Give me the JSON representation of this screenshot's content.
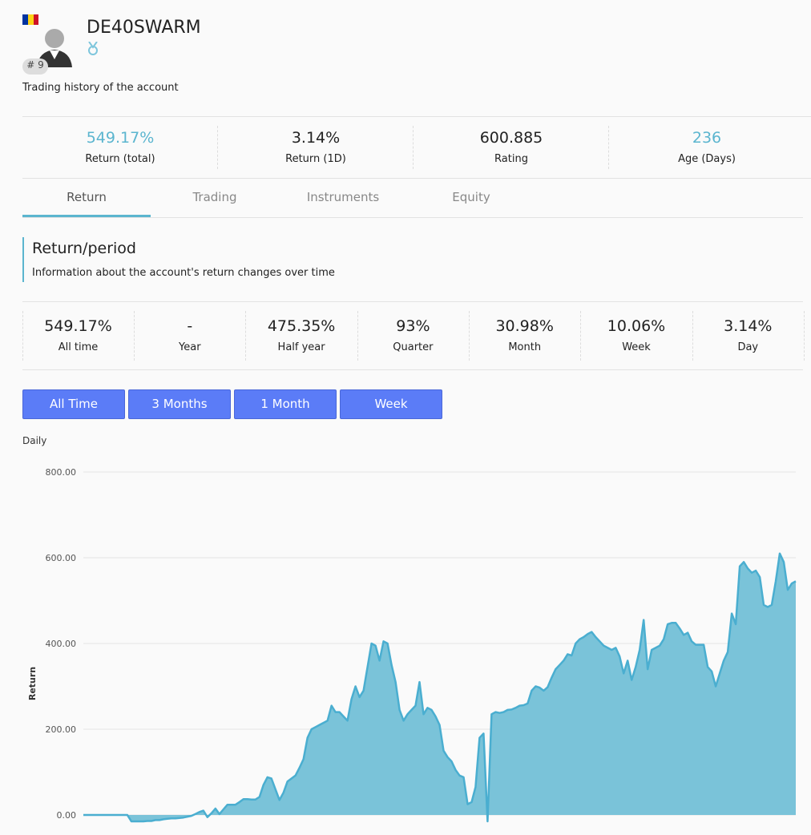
{
  "header": {
    "rank": "# 9",
    "name": "DE40SWARM",
    "subtitle": "Trading history of the account"
  },
  "stats": [
    {
      "value": "549.17%",
      "label": "Return (total)",
      "highlight": true
    },
    {
      "value": "3.14%",
      "label": "Return (1D)",
      "highlight": false
    },
    {
      "value": "600.885",
      "label": "Rating",
      "highlight": false
    },
    {
      "value": "236",
      "label": "Age (Days)",
      "highlight": true
    }
  ],
  "tabs": [
    "Return",
    "Trading",
    "Instruments",
    "Equity"
  ],
  "active_tab": 0,
  "section": {
    "title": "Return/period",
    "description": "Information about the account's return changes over time"
  },
  "periods": [
    {
      "value": "549.17%",
      "label": "All time"
    },
    {
      "value": "-",
      "label": "Year"
    },
    {
      "value": "475.35%",
      "label": "Half year"
    },
    {
      "value": "93%",
      "label": "Quarter"
    },
    {
      "value": "30.98%",
      "label": "Month"
    },
    {
      "value": "10.06%",
      "label": "Week"
    },
    {
      "value": "3.14%",
      "label": "Day"
    }
  ],
  "buttons": [
    "All Time",
    "3 Months",
    "1 Month",
    "Week"
  ],
  "chart_data": {
    "type": "area",
    "title": "Daily",
    "y_label": "Return",
    "color": "#7ac3d9",
    "line_color": "#4aaed0",
    "grid": true,
    "ylim": [
      -25,
      800
    ],
    "yticks": [
      {
        "value": 0,
        "label": "0.00"
      },
      {
        "value": 200,
        "label": "200.00"
      },
      {
        "value": 400,
        "label": "400.00"
      },
      {
        "value": 600,
        "label": "600.00"
      },
      {
        "value": 800,
        "label": "800.00"
      }
    ],
    "values": [
      0,
      0,
      0,
      0,
      0,
      0,
      0,
      0,
      0,
      0,
      0,
      0,
      -15,
      -15,
      -15,
      -15,
      -14,
      -14,
      -12,
      -12,
      -10,
      -9,
      -8,
      -8,
      -7,
      -6,
      -4,
      -2,
      2,
      7,
      10,
      -5,
      4,
      15,
      2,
      13,
      24,
      24,
      24,
      30,
      37,
      37,
      36,
      36,
      42,
      70,
      88,
      85,
      60,
      35,
      52,
      78,
      85,
      92,
      110,
      130,
      180,
      200,
      205,
      210,
      215,
      220,
      255,
      240,
      240,
      230,
      220,
      270,
      300,
      275,
      290,
      345,
      400,
      395,
      360,
      405,
      400,
      350,
      310,
      245,
      220,
      235,
      245,
      255,
      310,
      235,
      250,
      245,
      230,
      210,
      150,
      135,
      125,
      105,
      92,
      88,
      25,
      30,
      65,
      180,
      190,
      -15,
      235,
      240,
      238,
      240,
      245,
      246,
      250,
      255,
      256,
      260,
      290,
      300,
      297,
      290,
      298,
      320,
      340,
      350,
      360,
      375,
      372,
      400,
      410,
      415,
      422,
      427,
      415,
      405,
      395,
      390,
      385,
      390,
      370,
      330,
      360,
      315,
      345,
      385,
      455,
      340,
      385,
      390,
      395,
      410,
      445,
      448,
      448,
      435,
      420,
      425,
      405,
      397,
      397,
      397,
      345,
      335,
      300,
      330,
      360,
      380,
      470,
      445,
      580,
      590,
      575,
      565,
      570,
      555,
      490,
      485,
      490,
      545,
      610,
      590,
      525,
      540,
      545
    ]
  }
}
